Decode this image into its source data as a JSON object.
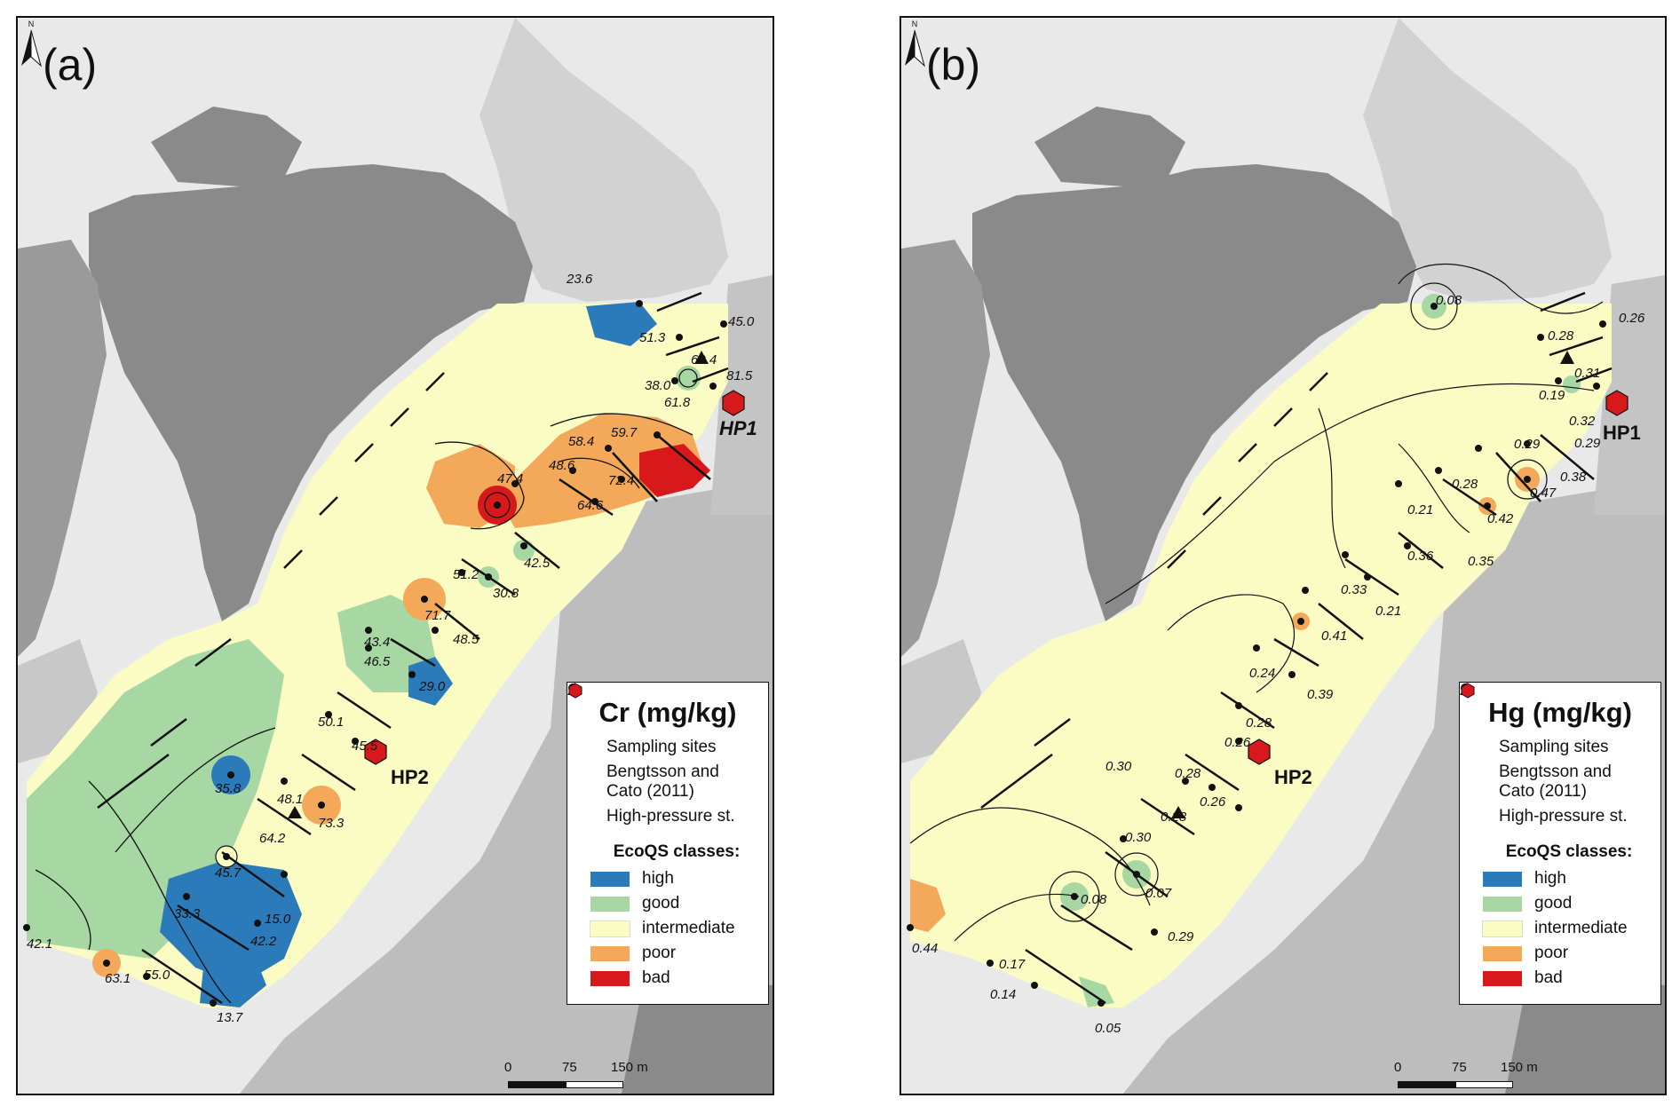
{
  "panels": [
    {
      "letter": "(a)",
      "legend": {
        "title": "Cr (mg/kg)",
        "sampling": "Sampling sites",
        "bengtsson": "Bengtsson and Cato (2011)",
        "high_pressure": "High-pressure st.",
        "ecoqs_title": "EcoQS classes:"
      },
      "site_labels": [
        "23.6",
        "45.0",
        "51.3",
        "60.4",
        "81.5",
        "38.0",
        "61.8",
        "59.7",
        "58.4",
        "48.6",
        "47.4",
        "72.4",
        "64.6",
        "42.5",
        "51.2",
        "30.8",
        "71.7",
        "48.5",
        "43.4",
        "46.5",
        "29.0",
        "50.1",
        "45.5",
        "35.8",
        "48.1",
        "73.3",
        "64.2",
        "45.7",
        "15.0",
        "33.3",
        "42.2",
        "42.1",
        "63.1",
        "55.0",
        "13.7"
      ],
      "hp": [
        "HP1",
        "HP2"
      ]
    },
    {
      "letter": "(b)",
      "legend": {
        "title": "Hg (mg/kg)",
        "sampling": "Sampling sites",
        "bengtsson": "Bengtsson and Cato (2011)",
        "high_pressure": "High-pressure st.",
        "ecoqs_title": "EcoQS classes:"
      },
      "site_labels": [
        "0.08",
        "0.26",
        "0.28",
        "0.31",
        "0.19",
        "0.32",
        "0.29",
        "0.29",
        "0.38",
        "0.28",
        "0.47",
        "0.21",
        "0.42",
        "0.36",
        "0.35",
        "0.33",
        "0.21",
        "0.41",
        "0.24",
        "0.39",
        "0.28",
        "0.26",
        "0.30",
        "0.28",
        "0.26",
        "0.28",
        "0.30",
        "0.08",
        "0.07",
        "0.29",
        "0.44",
        "0.17",
        "0.14",
        "0.05"
      ],
      "hp": [
        "HP1",
        "HP2"
      ]
    }
  ],
  "ecoqs_classes": [
    {
      "label": "high",
      "color": "#2b7bba"
    },
    {
      "label": "good",
      "color": "#a7d8a3"
    },
    {
      "label": "intermediate",
      "color": "#fbfbc4"
    },
    {
      "label": "poor",
      "color": "#f4a95a"
    },
    {
      "label": "bad",
      "color": "#d7191c"
    }
  ],
  "scale": {
    "l0": "0",
    "l1": "75",
    "l2": "150 m"
  },
  "north_label": "N"
}
